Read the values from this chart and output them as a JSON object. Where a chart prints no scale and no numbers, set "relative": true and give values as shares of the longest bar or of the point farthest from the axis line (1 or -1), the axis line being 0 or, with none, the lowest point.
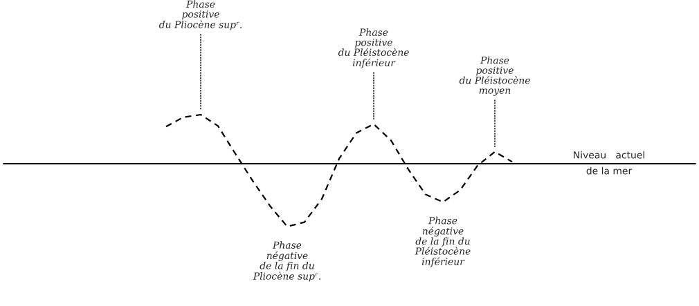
{
  "chart_data": {
    "type": "line",
    "relative": true,
    "line_style": "dashed",
    "categories": [
      null,
      null,
      null,
      null,
      null,
      null,
      null,
      null,
      null,
      null,
      null,
      null,
      null,
      null,
      null,
      null,
      null,
      null,
      null,
      null,
      null
    ],
    "series": [
      {
        "color": "#000000",
        "values": [
          0.59,
          0.74,
          0.78,
          0.6,
          0.16,
          -0.27,
          -0.67,
          -1.0,
          -0.93,
          -0.56,
          0.08,
          0.49,
          0.63,
          0.37,
          -0.09,
          -0.49,
          -0.61,
          -0.42,
          -0.03,
          0.19,
          0.03
        ]
      }
    ],
    "ref_lines": [
      {
        "axis": "y",
        "value": 0,
        "label": "Niveau   actuel\nde la mer",
        "color": "#000000"
      }
    ],
    "annotations": [
      "Phase\npositive\ndu Pliocène supʳ.",
      "Phase\nnégative\nde la fin du\nPliocène supʳ.",
      "Phase\npositive\ndu Pléistocène\ninférieur",
      "Phase\nnégative\nde la fin du\nPléistocène\ninférieur",
      "Phase\npositive\ndu Pléistocène\nmoyen"
    ]
  }
}
